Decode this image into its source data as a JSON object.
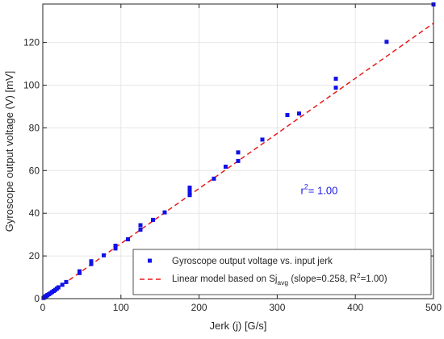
{
  "chart_data": {
    "type": "scatter",
    "xlabel": "Jerk (j) [G/s]",
    "ylabel": "Gyroscope output voltage (V) [mV]",
    "xlim": [
      0,
      500
    ],
    "ylim": [
      0,
      138
    ],
    "xticks": [
      0,
      100,
      200,
      300,
      400,
      500
    ],
    "yticks": [
      0,
      20,
      40,
      60,
      80,
      100,
      120
    ],
    "grid": true,
    "legend_position": "bottom-right",
    "annotation": {
      "base": "r",
      "sup": "2",
      "rest": "= 1.00",
      "x": 330,
      "y": 49,
      "color": "#1a1ae6"
    },
    "series": [
      {
        "name": "Gyroscope output voltage vs. input jerk",
        "kind": "scatter",
        "marker": "square",
        "color": "#1010e8",
        "points": [
          [
            1,
            0.3
          ],
          [
            2,
            0.6
          ],
          [
            3,
            0.9
          ],
          [
            4,
            1.1
          ],
          [
            5,
            1.4
          ],
          [
            6,
            1.7
          ],
          [
            8,
            2.1
          ],
          [
            10,
            2.6
          ],
          [
            12,
            3.1
          ],
          [
            14,
            3.6
          ],
          [
            16,
            4.1
          ],
          [
            18,
            4.7
          ],
          [
            20,
            5.3
          ],
          [
            25,
            6.5
          ],
          [
            30,
            7.8
          ],
          [
            47,
            12
          ],
          [
            47,
            12.8
          ],
          [
            62,
            16.2
          ],
          [
            62,
            17.5
          ],
          [
            78,
            20.3
          ],
          [
            93,
            23.5
          ],
          [
            93,
            24.8
          ],
          [
            109,
            27.8
          ],
          [
            125,
            32.3
          ],
          [
            125,
            34.4
          ],
          [
            141,
            36.9
          ],
          [
            156,
            40.4
          ],
          [
            188,
            48.5
          ],
          [
            188,
            50
          ],
          [
            188,
            51
          ],
          [
            188,
            52
          ],
          [
            219,
            56.2
          ],
          [
            234,
            61.8
          ],
          [
            250,
            64.5
          ],
          [
            250,
            68.5
          ],
          [
            281,
            74.5
          ],
          [
            313,
            86
          ],
          [
            328,
            86.7
          ],
          [
            375,
            98.8
          ],
          [
            375,
            103
          ],
          [
            440,
            120.3
          ],
          [
            500,
            137.8
          ]
        ]
      },
      {
        "name": "Linear model based on Sj_avg (slope=0.258, R²=1.00)",
        "kind": "line",
        "line_style": "dashed",
        "color": "#e81a1a",
        "slope": 0.258,
        "intercept": 0
      }
    ],
    "legend": {
      "entry1": "Gyroscope output voltage vs. input jerk",
      "entry2_prefix": "Linear model based on Sj",
      "entry2_sub": "avg",
      "entry2_mid": " (slope=0.258, R",
      "entry2_sup": "2",
      "entry2_suffix": "=1.00)"
    }
  }
}
